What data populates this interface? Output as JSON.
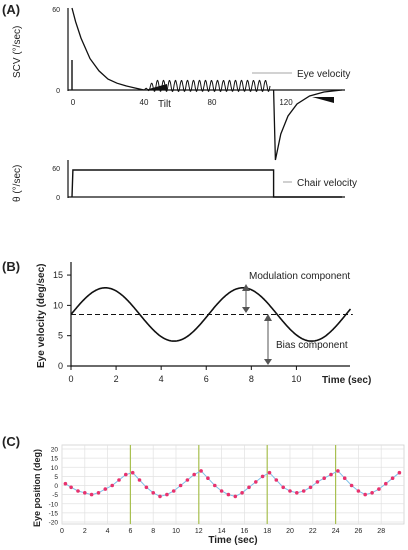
{
  "chart_data": [
    {
      "panel_label": "(A)",
      "type": "line",
      "subplots": [
        {
          "ylabel": "SCV (°/sec)",
          "xticks": [
            "0",
            "40",
            "80",
            "120"
          ],
          "xlim": [
            0,
            160
          ],
          "yticks": [
            "60",
            "0"
          ],
          "ylim": [
            -35,
            60
          ],
          "annotation_line": "Eye velocity",
          "annotation_tilt": "Tilt",
          "series": [
            {
              "role": "per-rotatory decay",
              "x": [
                0,
                2,
                5,
                10,
                15,
                20,
                25,
                30,
                35,
                40
              ],
              "y": [
                60,
                50,
                38,
                23,
                14,
                8,
                5,
                3,
                1.5,
                0
              ]
            },
            {
              "role": "modulation during tilt",
              "x_start": 40,
              "x_end": 110,
              "cycles": 21,
              "amplitude": 4,
              "bias": 3
            },
            {
              "role": "post-rotatory response",
              "x": [
                112,
                113,
                116,
                120,
                125,
                132,
                140,
                150
              ],
              "y": [
                0,
                -35,
                -22,
                -13,
                -7,
                -3,
                -1,
                0
              ]
            }
          ]
        },
        {
          "ylabel": "θ (°/sec)",
          "yticks": [
            "60",
            "0"
          ],
          "ylim": [
            0,
            60
          ],
          "annotation_line": "Chair velocity",
          "series": [
            {
              "role": "chair velocity",
              "x": [
                0,
                0.5,
                1,
                112,
                112,
                150
              ],
              "y": [
                0,
                60,
                60,
                60,
                0,
                0
              ]
            }
          ]
        }
      ]
    },
    {
      "panel_label": "(B)",
      "type": "line",
      "ylabel": "Eye velocity (deg/sec)",
      "xlabel": "Time (sec)",
      "xlim": [
        0,
        12.5
      ],
      "ylim": [
        0,
        16
      ],
      "xticks": [
        "0",
        "2",
        "4",
        "6",
        "8",
        "10"
      ],
      "yticks": [
        "0",
        "5",
        "10",
        "15"
      ],
      "annotation_modulation": "Modulation component",
      "annotation_bias": "Bias component",
      "series": [
        {
          "role": "eye velocity",
          "x": [
            0,
            0.5,
            1,
            1.5,
            2,
            2.5,
            3,
            3.5,
            4,
            4.5,
            5,
            5.5,
            6,
            6.5,
            7,
            7.5,
            8,
            8.5,
            9,
            9.5,
            10,
            10.5,
            11,
            11.5,
            12,
            12.5
          ],
          "y": [
            8.5,
            10.6,
            12.2,
            12.9,
            12.6,
            11.4,
            9.5,
            7.4,
            5.5,
            4.4,
            4.2,
            5.1,
            6.9,
            9.0,
            11.0,
            12.4,
            12.9,
            12.3,
            10.8,
            8.8,
            6.7,
            5.0,
            4.2,
            4.4,
            5.8,
            7.8
          ]
        },
        {
          "role": "bias level",
          "x": [
            0,
            12.5
          ],
          "y": [
            8.5,
            8.5
          ]
        }
      ]
    },
    {
      "panel_label": "(C)",
      "type": "scatter",
      "ylabel": "Eye position (deg)",
      "xlabel": "Time (sec)",
      "xlim": [
        0,
        30
      ],
      "ylim": [
        -20,
        20
      ],
      "xticks": [
        "0",
        "2",
        "4",
        "6",
        "8",
        "10",
        "12",
        "14",
        "16",
        "18",
        "20",
        "22",
        "24",
        "26",
        "28"
      ],
      "yticks": [
        "20",
        "15",
        "10",
        "5",
        "0",
        "-5",
        "-10",
        "-15",
        "-20"
      ],
      "vertical_markers": [
        6,
        12,
        18,
        24
      ],
      "colors": {
        "trace": "#7fbfe8",
        "points": "#e8326e",
        "markers": "#a8c050",
        "grid": "#e2e2e2"
      },
      "series": [
        {
          "role": "eye position trace",
          "x": [
            0.3,
            0.8,
            1.4,
            2.0,
            2.6,
            3.2,
            3.8,
            4.4,
            5.0,
            5.6,
            6.2,
            6.8,
            7.4,
            8.0,
            8.6,
            9.2,
            9.8,
            10.4,
            11.0,
            11.6,
            12.2,
            12.8,
            13.4,
            14.0,
            14.6,
            15.2,
            15.8,
            16.4,
            17.0,
            17.6,
            18.2,
            18.8,
            19.4,
            20.0,
            20.6,
            21.2,
            21.8,
            22.4,
            23.0,
            23.6,
            24.2,
            24.8,
            25.4,
            26.0,
            26.6,
            27.2,
            27.8,
            28.4,
            29.0,
            29.6
          ],
          "y": [
            1,
            -1,
            -3,
            -4,
            -5,
            -4,
            -2,
            0,
            3,
            6,
            7,
            3,
            -1,
            -4,
            -6,
            -5,
            -3,
            0,
            3,
            6,
            8,
            4,
            0,
            -3,
            -5,
            -6,
            -4,
            -1,
            2,
            5,
            7,
            3,
            -1,
            -3,
            -4,
            -3,
            -1,
            2,
            4,
            6,
            8,
            4,
            0,
            -3,
            -5,
            -4,
            -2,
            1,
            4,
            7
          ]
        }
      ]
    }
  ]
}
